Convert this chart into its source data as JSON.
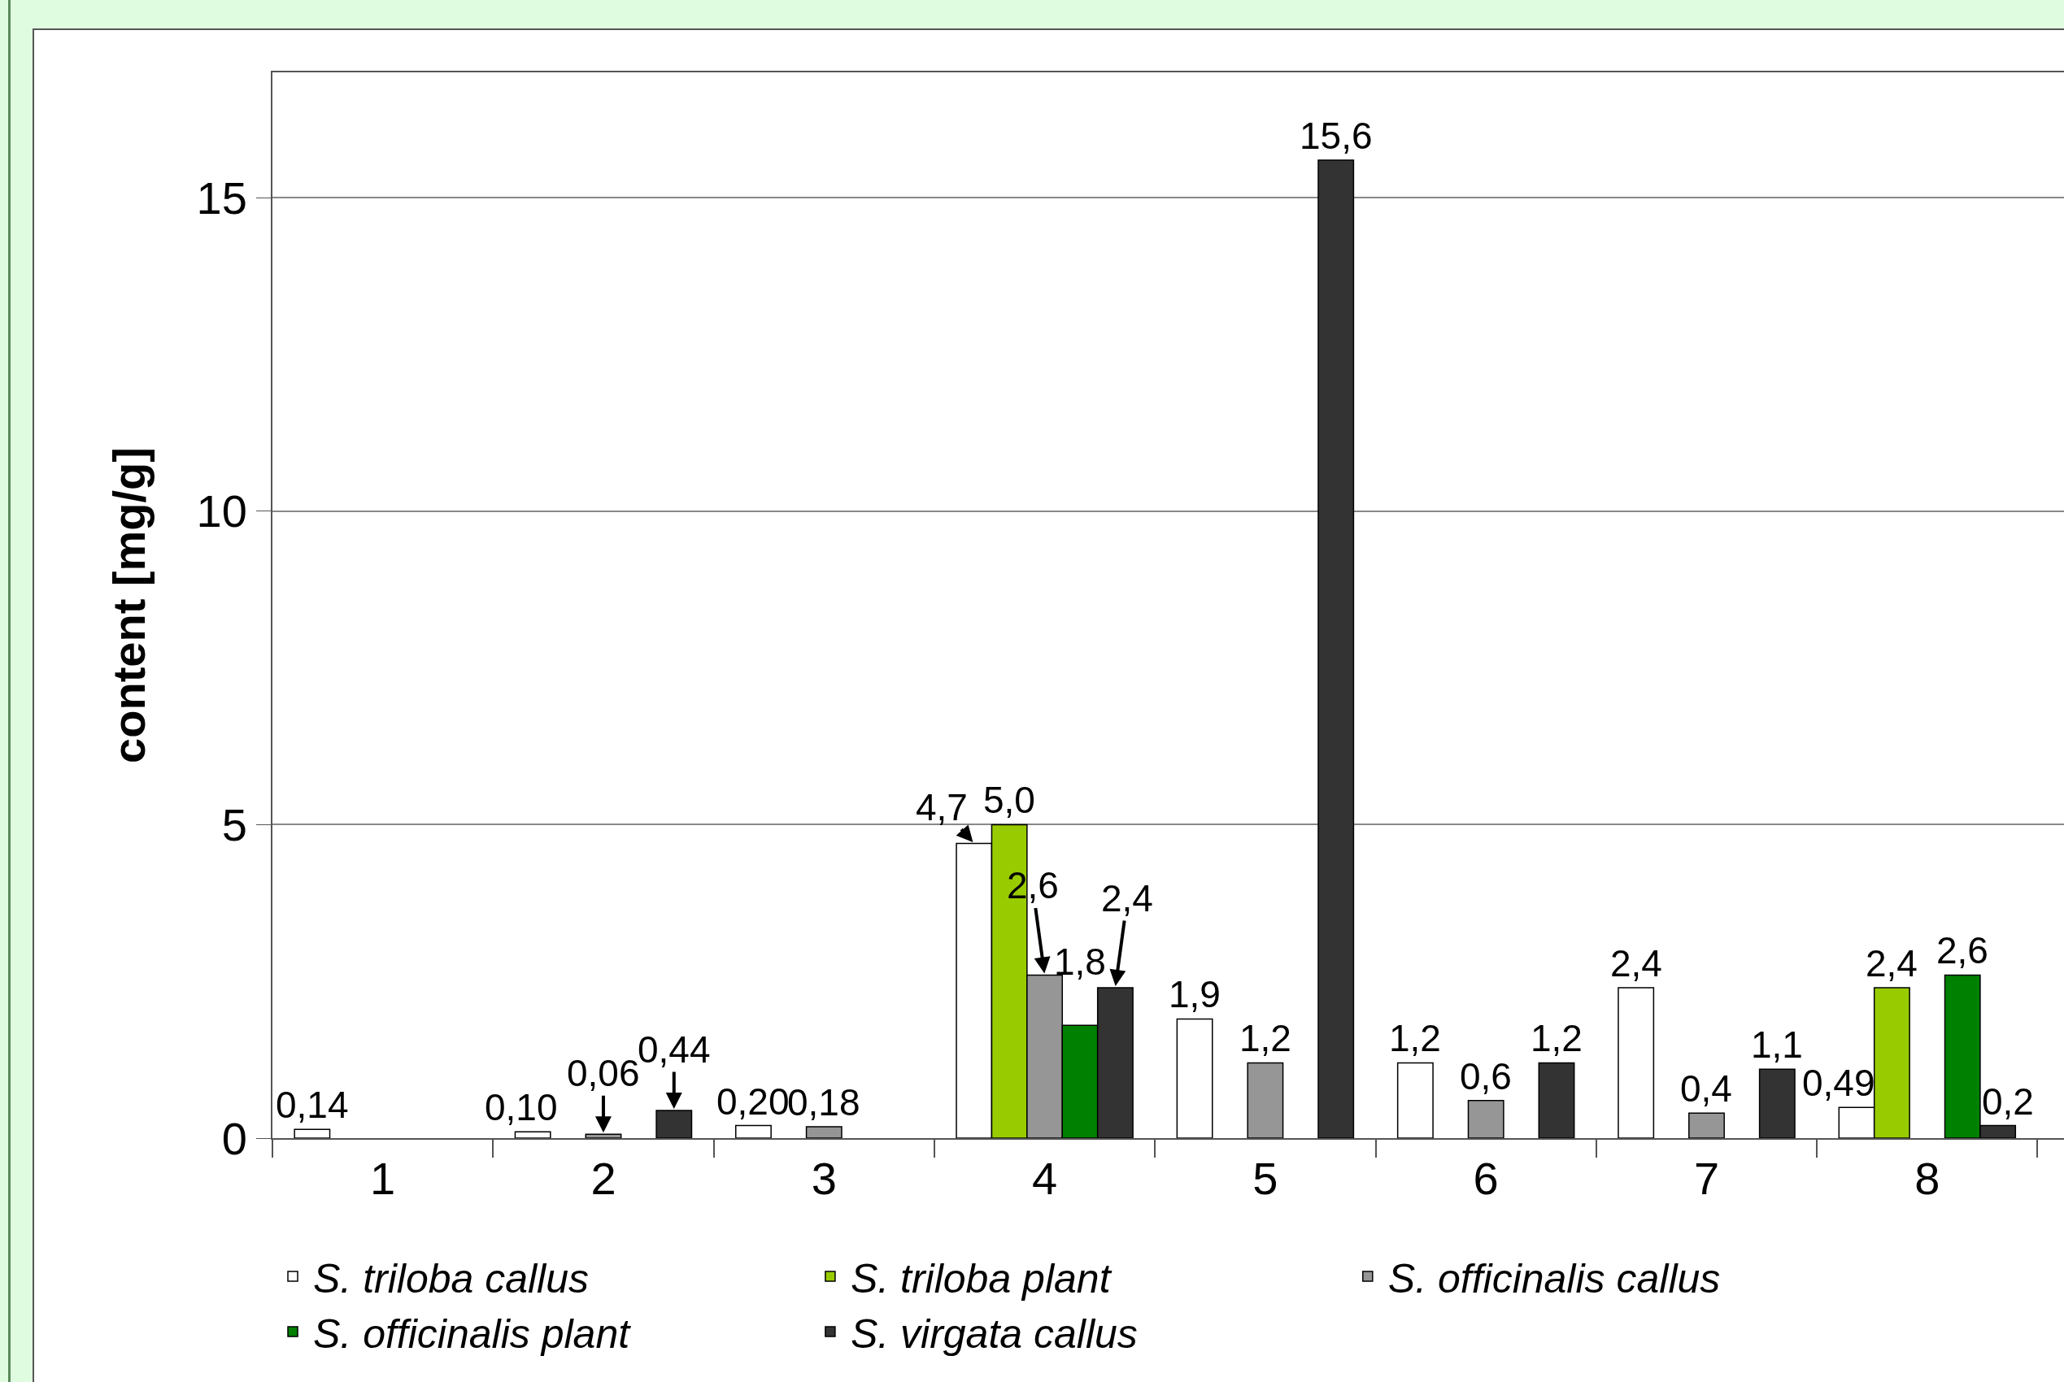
{
  "chart_data": {
    "type": "bar",
    "ylabel": "content [mg/g]",
    "categories": [
      "1",
      "2",
      "3",
      "4",
      "5",
      "6",
      "7",
      "8"
    ],
    "series": [
      {
        "name": "S. triloba callus",
        "color": "#ffffff",
        "values": [
          0.14,
          0.1,
          0.2,
          4.7,
          1.9,
          1.2,
          2.4,
          0.49
        ],
        "value_labels": [
          "0,14",
          "0,10",
          "0,20",
          "4,7",
          "1,9",
          "1,2",
          "2,4",
          "0,49"
        ]
      },
      {
        "name": "S. triloba plant",
        "color": "#99cc00",
        "values": [
          null,
          null,
          null,
          5.0,
          null,
          null,
          null,
          2.4
        ],
        "value_labels": [
          null,
          null,
          null,
          "5,0",
          null,
          null,
          null,
          "2,4"
        ]
      },
      {
        "name": "S. officinalis callus",
        "color": "#969696",
        "values": [
          null,
          0.06,
          0.18,
          2.6,
          1.2,
          0.6,
          0.4,
          null
        ],
        "value_labels": [
          null,
          "0,06",
          "0,18",
          "2,6",
          "1,2",
          "0,6",
          "0,4",
          null
        ]
      },
      {
        "name": "S. officinalis plant",
        "color": "#008000",
        "values": [
          null,
          null,
          null,
          1.8,
          null,
          null,
          null,
          2.6
        ],
        "value_labels": [
          null,
          null,
          null,
          "1,8",
          null,
          null,
          null,
          "2,6"
        ]
      },
      {
        "name": "S. virgata callus",
        "color": "#333333",
        "values": [
          null,
          0.44,
          null,
          2.4,
          15.6,
          1.2,
          1.1,
          0.2
        ],
        "value_labels": [
          null,
          "0,44",
          null,
          "2,4",
          "15,6",
          "1,2",
          "1,1",
          "0,2"
        ]
      }
    ],
    "ylim": [
      0,
      17
    ],
    "yticks": [
      0,
      5,
      10,
      15
    ],
    "grid": "y",
    "legend": "bottom"
  }
}
